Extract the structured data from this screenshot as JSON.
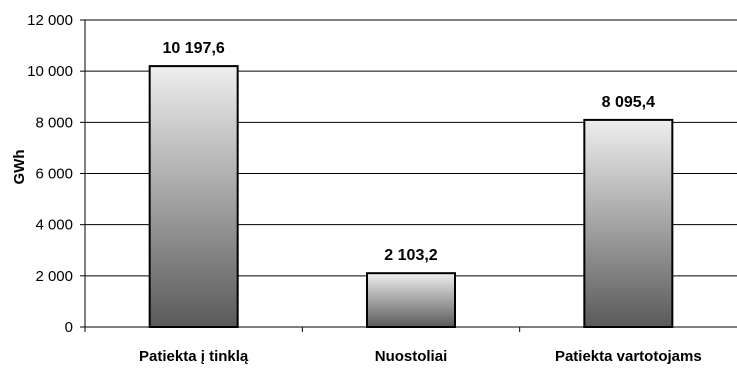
{
  "chart_data": {
    "type": "bar",
    "categories": [
      "Patiekta į tinklą",
      "Nuostoliai",
      "Patiekta vartotojams"
    ],
    "values": [
      10197.6,
      2103.2,
      8095.4
    ],
    "data_labels": [
      "10 197,6",
      "2 103,2",
      "8 095,4"
    ],
    "title": "",
    "xlabel": "",
    "ylabel": "GWh",
    "ylim": [
      0,
      12000
    ],
    "yticks": [
      0,
      2000,
      4000,
      6000,
      8000,
      10000,
      12000
    ],
    "ytick_labels": [
      "0",
      "2 000",
      "4 000",
      "6 000",
      "8 000",
      "10 000",
      "12 000"
    ],
    "grid": true,
    "legend": "none",
    "colors": {
      "bar_top": "#eeeeee",
      "bar_bottom": "#5a5a5a",
      "bar_stroke": "#000000",
      "grid": "#000000"
    }
  }
}
